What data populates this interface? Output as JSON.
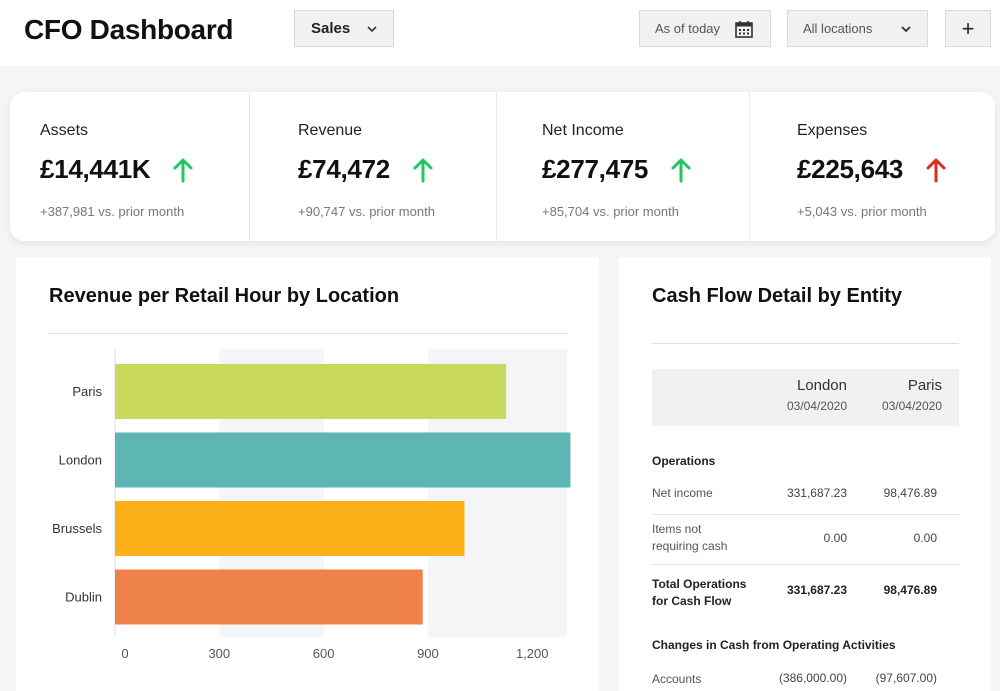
{
  "header": {
    "title": "CFO Dashboard",
    "view_select": "Sales",
    "date_filter": "As of today",
    "location_filter": "All locations",
    "add_label": "+"
  },
  "kpis": [
    {
      "label": "Assets",
      "value": "£14,441K",
      "trend": "up",
      "sub": "+387,981 vs. prior month"
    },
    {
      "label": "Revenue",
      "value": "£74,472",
      "trend": "up",
      "sub": "+90,747 vs. prior month"
    },
    {
      "label": "Net Income",
      "value": "£277,475",
      "trend": "up",
      "sub": "+85,704 vs. prior month"
    },
    {
      "label": "Expenses",
      "value": "£225,643",
      "trend": "up-bad",
      "sub": "+5,043 vs. prior month"
    }
  ],
  "colors": {
    "trend_good": "#22c55e",
    "trend_bad": "#e02d1b",
    "bar_paris": "#c8d95b",
    "bar_london": "#5eb6b4",
    "bar_brussels": "#fbb017",
    "bar_dublin": "#ef824b"
  },
  "revenue_chart": {
    "title": "Revenue per Retail Hour by Location"
  },
  "chart_data": {
    "type": "bar",
    "orientation": "horizontal",
    "title": "Revenue per Retail Hour by Location",
    "categories": [
      "Paris",
      "London",
      "Brussels",
      "Dublin"
    ],
    "values": [
      1125,
      1310,
      1005,
      885
    ],
    "xlim": [
      0,
      1300
    ],
    "xticks": [
      0,
      300,
      600,
      900,
      1200
    ],
    "xtick_labels": [
      "0",
      "300",
      "600",
      "900",
      "1,200"
    ],
    "grid": "alternating vertical bands",
    "legend": "none"
  },
  "cash_flow": {
    "title": "Cash Flow Detail by Entity",
    "columns": [
      {
        "city": "London",
        "date": "03/04/2020"
      },
      {
        "city": "Paris",
        "date": "03/04/2020"
      }
    ],
    "section_operations": "Operations",
    "rows": [
      {
        "label": "Net income",
        "london": "331,687.23",
        "paris": "98,476.89"
      },
      {
        "label": "Items not requiring cash",
        "london": "0.00",
        "paris": "0.00"
      },
      {
        "label": "Total Operations for Cash Flow",
        "london": "331,687.23",
        "paris": "98,476.89"
      }
    ],
    "section_changes": "Changes in Cash from Operating Activities",
    "partial_row": {
      "label": "Accounts",
      "london": "(386,000.00)",
      "paris": "(97,607.00)"
    }
  }
}
